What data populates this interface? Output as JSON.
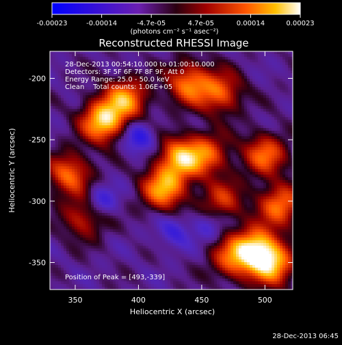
{
  "chart_data": {
    "type": "heatmap",
    "title": "Reconstructed RHESSI Image",
    "xlabel": "Heliocentric X (arcsec)",
    "ylabel": "Heliocentric Y (arcsec)",
    "xlim": [
      330,
      522
    ],
    "ylim": [
      -372,
      -178
    ],
    "xticks": [
      350,
      400,
      450,
      500
    ],
    "yticks": [
      -200,
      -250,
      -300,
      -350
    ],
    "colorbar": {
      "ticks": [
        "-0.00023",
        "-0.00014",
        "-4.7e-05",
        "4.7e-05",
        "0.00014",
        "0.00023"
      ],
      "unit_label": "(photons cm⁻² s⁻¹ asec⁻²)",
      "range": [
        -0.00023,
        0.00023
      ]
    },
    "annotations": [
      "28-Dec-2013 00:54:10.000 to 01:00:10.000",
      "Detectors: 3F 5F 6F 7F 8F 9F, Att 0",
      "Energy Range: 25.0 - 50.0 keV",
      "Clean    Total counts: 1.06E+05"
    ],
    "peak_label": "Position of Peak = [493,-339]",
    "peak": [
      493,
      -339
    ],
    "sources": [
      {
        "x": 372,
        "y": -235,
        "intensity": 0.00023
      },
      {
        "x": 390,
        "y": -217,
        "intensity": 0.00018
      },
      {
        "x": 440,
        "y": -204,
        "intensity": 0.00017
      },
      {
        "x": 465,
        "y": -212,
        "intensity": 0.00015
      },
      {
        "x": 345,
        "y": -278,
        "intensity": 0.00016
      },
      {
        "x": 357,
        "y": -313,
        "intensity": 0.00012
      },
      {
        "x": 420,
        "y": -290,
        "intensity": 0.0002
      },
      {
        "x": 433,
        "y": -265,
        "intensity": 0.0002
      },
      {
        "x": 455,
        "y": -262,
        "intensity": 0.00014
      },
      {
        "x": 466,
        "y": -300,
        "intensity": 0.00012
      },
      {
        "x": 500,
        "y": -262,
        "intensity": 0.00016
      },
      {
        "x": 512,
        "y": -303,
        "intensity": 0.00017
      },
      {
        "x": 493,
        "y": -339,
        "intensity": 0.00023
      },
      {
        "x": 506,
        "y": -352,
        "intensity": 0.00019
      },
      {
        "x": 474,
        "y": -347,
        "intensity": 0.00014
      }
    ],
    "cold_spots": [
      {
        "x": 400,
        "y": -248,
        "intensity": -0.00012
      },
      {
        "x": 370,
        "y": -300,
        "intensity": -0.0001
      },
      {
        "x": 428,
        "y": -325,
        "intensity": -8e-05
      },
      {
        "x": 455,
        "y": -320,
        "intensity": -7e-05
      }
    ]
  },
  "footer_timestamp": "28-Dec-2013 06:45"
}
